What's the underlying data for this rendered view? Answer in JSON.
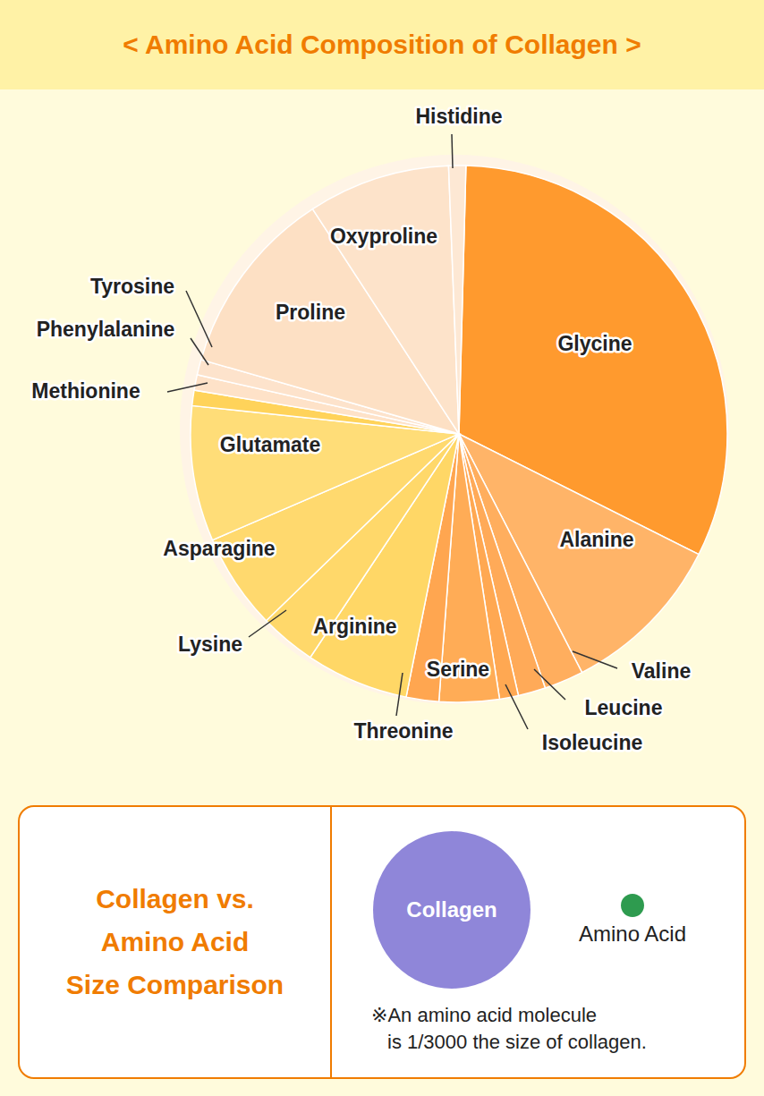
{
  "chart_data": {
    "type": "pie",
    "title": "< Amino Acid Composition of Collagen >",
    "categories": [
      "Glycine",
      "Alanine",
      "Valine",
      "Leucine",
      "Isoleucine",
      "Serine",
      "Threonine",
      "Arginine",
      "Lysine",
      "Asparagine",
      "Glutamate",
      "Methionine",
      "Phenylalanine",
      "Tyrosine",
      "Proline",
      "Oxyproline",
      "Histidine"
    ],
    "values": [
      31,
      9.7,
      2.3,
      1.6,
      1.1,
      3.5,
      1.9,
      6,
      3.3,
      5.6,
      7.9,
      0.9,
      0.9,
      0.9,
      11,
      8.3,
      1
    ],
    "colors": [
      "#ff9a2e",
      "#ffb468",
      "#ffae5e",
      "#ffaa58",
      "#ffa852",
      "#ffac56",
      "#ffa650",
      "#ffd766",
      "#ffd86a",
      "#ffd96e",
      "#ffdd78",
      "#ffd35a",
      "#fee2c8",
      "#fde3cc",
      "#fde0c4",
      "#fde3ca",
      "#fde8d4"
    ]
  },
  "size_comparison": {
    "title_lines": [
      "Collagen vs.",
      "Amino Acid",
      "Size Comparison"
    ],
    "large_label": "Collagen",
    "small_label": "Amino Acid",
    "note_lines": [
      "※An amino acid molecule",
      "is 1/3000 the size of collagen."
    ]
  }
}
